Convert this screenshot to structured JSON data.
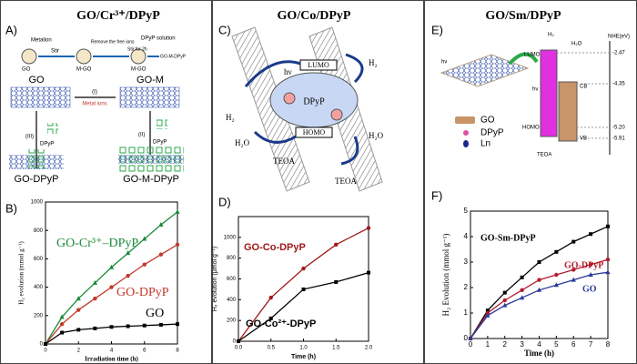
{
  "panels": [
    {
      "letter": "A)",
      "title": "GO/Cr³⁺/DPyP",
      "labels": [
        "Metalion",
        "Stir",
        "Remove the free ions",
        "DPyP solution",
        "Stir for 2h",
        "GO-M-DPyP",
        "GO",
        "M-GO",
        "M-GO",
        "GO",
        "GO-M",
        "(I)",
        "Metal ions",
        "(III)",
        "DPyP",
        "(II)",
        "DPyP",
        "GO-DPyP",
        "GO-M-DPyP"
      ]
    },
    {
      "letter": "C)",
      "title": "GO/Co/DPyP",
      "labels": [
        "hν",
        "LUMO",
        "HOMO",
        "DPyP",
        "H₂",
        "H₂O",
        "H₂",
        "H₂O",
        "TEOA",
        "TEOA"
      ]
    },
    {
      "letter": "E)",
      "title": "GO/Sm/DPyP",
      "labels": [
        "NHE(eV)",
        "-2.47",
        "-4.35",
        "-5.20",
        "-5.91",
        "LUMO",
        "HOMO",
        "CB",
        "VB",
        "H₂",
        "H₂O",
        "TEOA",
        "hν",
        "hν",
        "GO",
        "DPyP",
        "Ln"
      ]
    }
  ],
  "chart_data": [
    {
      "type": "line",
      "panel": "B)",
      "xlabel": "Irradiation time (h)",
      "ylabel": "H₂ evolution (mmol g⁻¹)",
      "x": [
        0,
        1,
        2,
        3,
        4,
        5,
        6,
        7,
        8
      ],
      "xlim": [
        0,
        8
      ],
      "xticks": [
        0,
        2,
        4,
        6,
        8
      ],
      "ylim": [
        0,
        1000
      ],
      "yticks": [
        0,
        200,
        400,
        600,
        800,
        1000
      ],
      "series": [
        {
          "name": "GO-Cr³⁺–DPyP",
          "color": "#1a8a3a",
          "marker": "triangle",
          "values": [
            0,
            190,
            320,
            430,
            540,
            640,
            740,
            840,
            930
          ]
        },
        {
          "name": "GO-DPyP",
          "color": "#c0392b",
          "marker": "circle",
          "values": [
            0,
            140,
            240,
            320,
            400,
            480,
            560,
            630,
            700
          ]
        },
        {
          "name": "GO",
          "color": "#000000",
          "marker": "square",
          "values": [
            0,
            80,
            100,
            110,
            120,
            125,
            130,
            135,
            140
          ]
        }
      ]
    },
    {
      "type": "line",
      "panel": "D)",
      "xlabel": "Time (h)",
      "ylabel": "H₂ evolution (μmol g⁻¹)",
      "x": [
        0,
        0.5,
        1,
        1.5,
        2
      ],
      "xlim": [
        0,
        2
      ],
      "xticks": [
        {
          "value": 0,
          "label": "0.0"
        },
        0.5,
        {
          "value": 1,
          "label": "1.0"
        },
        1.5,
        {
          "value": 2,
          "label": "2.0"
        }
      ],
      "ylim": [
        0,
        1200
      ],
      "yticks": [
        0,
        200,
        400,
        600,
        800,
        1000
      ],
      "series": [
        {
          "name": "GO-Co-DPyP",
          "color": "#a01818",
          "marker": "circle",
          "values": [
            0,
            420,
            700,
            930,
            1090
          ]
        },
        {
          "name": "GO-Co²⁺-DPyP",
          "color": "#000000",
          "marker": "square",
          "values": [
            0,
            220,
            500,
            570,
            660
          ]
        }
      ]
    },
    {
      "type": "line",
      "panel": "F)",
      "xlabel": "Time (h)",
      "ylabel": "H₂ Evolution (mmol g⁻¹)",
      "x": [
        0,
        1,
        2,
        3,
        4,
        5,
        6,
        7,
        8
      ],
      "xlim": [
        0,
        8
      ],
      "xticks": [
        0,
        1,
        2,
        3,
        4,
        5,
        6,
        7,
        8
      ],
      "ylim": [
        0,
        5
      ],
      "yticks": [
        0,
        1,
        2,
        3,
        4,
        5
      ],
      "series": [
        {
          "name": "GO-Sm-DPyP",
          "color": "#000000",
          "marker": "square",
          "values": [
            0,
            1.1,
            1.8,
            2.4,
            3.0,
            3.4,
            3.8,
            4.1,
            4.4
          ]
        },
        {
          "name": "GO-DPyP",
          "color": "#b01c2e",
          "marker": "circle",
          "values": [
            0,
            1.0,
            1.5,
            1.9,
            2.3,
            2.5,
            2.7,
            2.9,
            3.1
          ]
        },
        {
          "name": "GO",
          "color": "#2a3a9a",
          "marker": "triangle",
          "values": [
            0,
            0.9,
            1.3,
            1.6,
            1.9,
            2.1,
            2.3,
            2.5,
            2.6
          ]
        }
      ]
    }
  ]
}
